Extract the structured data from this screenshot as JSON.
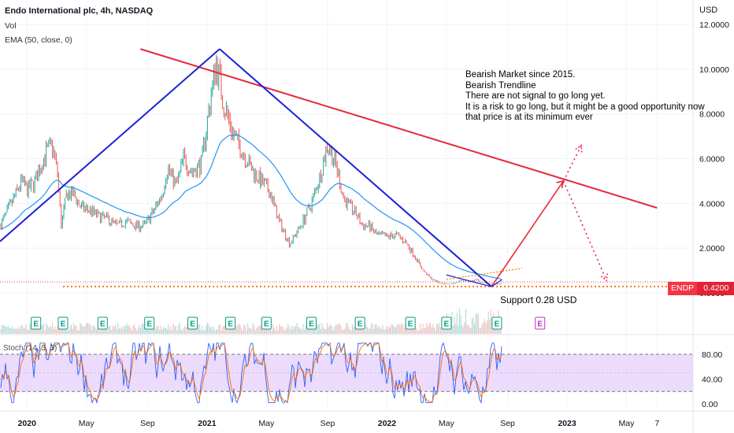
{
  "header": {
    "title": "Endo International plc, 4h, NASDAQ",
    "vol_label": "Vol",
    "ema_label": "EMA (50, close, 0)"
  },
  "notes": [
    "Bearish Market since 2015.",
    "Bearish Trendline",
    "There are not signal to go long yet.",
    "It is a risk to go long, but it might be a good opportunity now",
    "that price is at its minimum ever"
  ],
  "support_text": "Support 0.28 USD",
  "price_axis": {
    "unit": "USD",
    "ticks": [
      {
        "label": "12.0000",
        "value": 12
      },
      {
        "label": "10.0000",
        "value": 10
      },
      {
        "label": "8.0000",
        "value": 8
      },
      {
        "label": "6.0000",
        "value": 6
      },
      {
        "label": "4.0000",
        "value": 4
      },
      {
        "label": "2.0000",
        "value": 2
      },
      {
        "label": "0.0000",
        "value": 0
      }
    ]
  },
  "last_price": {
    "symbol": "ENDP",
    "value": "0.4200",
    "price": 0.42
  },
  "stoch": {
    "label": "Stoch (14, 3, 3)",
    "ticks": [
      {
        "label": "80.00",
        "value": 80
      },
      {
        "label": "40.00",
        "value": 40
      },
      {
        "label": "0.00",
        "value": 0
      }
    ],
    "upper_band": 80,
    "lower_band": 20
  },
  "time_axis": [
    {
      "label": "2020",
      "t": 2020.0,
      "bold": true
    },
    {
      "label": "May",
      "t": 2020.33,
      "bold": false
    },
    {
      "label": "Sep",
      "t": 2020.67,
      "bold": false
    },
    {
      "label": "2021",
      "t": 2021.0,
      "bold": true
    },
    {
      "label": "May",
      "t": 2021.33,
      "bold": false
    },
    {
      "label": "Sep",
      "t": 2021.67,
      "bold": false
    },
    {
      "label": "2022",
      "t": 2022.0,
      "bold": true
    },
    {
      "label": "May",
      "t": 2022.33,
      "bold": false
    },
    {
      "label": "Sep",
      "t": 2022.67,
      "bold": false
    },
    {
      "label": "2023",
      "t": 2023.0,
      "bold": true
    },
    {
      "label": "May",
      "t": 2023.33,
      "bold": false
    },
    {
      "label": "7",
      "t": 2023.5,
      "bold": false
    }
  ],
  "earnings_marker": "E",
  "earnings_t": [
    2020.05,
    2020.2,
    2020.42,
    2020.68,
    2020.92,
    2021.13,
    2021.33,
    2021.58,
    2021.85,
    2022.13,
    2022.33,
    2022.61,
    2022.85
  ],
  "colors": {
    "price_up": "#26a69a",
    "price_down": "#ef5350",
    "ema": "#2196f3",
    "trend_red": "#e52b3b",
    "trend_blue": "#1a22d6",
    "support": "#f57c00",
    "stoch_k": "#2962ff",
    "stoch_d": "#ff6d00",
    "stoch_band": "#e6cffc"
  },
  "chart_data": {
    "type": "line",
    "title": "Endo International plc, 4h, NASDAQ",
    "xlabel": "",
    "ylabel": "USD",
    "xlim": [
      2019.85,
      2023.7
    ],
    "ylim": [
      -0.2,
      12.3
    ],
    "grid": true,
    "legend_position": "top-left",
    "series": [
      {
        "name": "ENDP",
        "x": [
          2019.85,
          2019.92,
          2019.97,
          2020.0,
          2020.04,
          2020.1,
          2020.14,
          2020.17,
          2020.19,
          2020.22,
          2020.26,
          2020.3,
          2020.35,
          2020.4,
          2020.45,
          2020.5,
          2020.55,
          2020.6,
          2020.65,
          2020.7,
          2020.75,
          2020.78,
          2020.83,
          2020.87,
          2020.92,
          2020.97,
          2021.0,
          2021.02,
          2021.05,
          2021.07,
          2021.09,
          2021.11,
          2021.15,
          2021.2,
          2021.25,
          2021.3,
          2021.35,
          2021.4,
          2021.46,
          2021.52,
          2021.58,
          2021.63,
          2021.67,
          2021.72,
          2021.76,
          2021.8,
          2021.84,
          2021.86,
          2021.9,
          2021.94,
          2022.0,
          2022.05,
          2022.1,
          2022.15,
          2022.2,
          2022.25,
          2022.3,
          2022.35,
          2022.38,
          2022.42,
          2022.46,
          2022.5,
          2022.53,
          2022.56,
          2022.6,
          2022.63
        ],
        "values": [
          3.0,
          4.1,
          5.0,
          4.6,
          4.9,
          6.2,
          6.6,
          5.3,
          3.0,
          4.4,
          4.4,
          3.8,
          3.7,
          3.4,
          3.3,
          3.0,
          3.2,
          3.0,
          3.0,
          3.6,
          4.4,
          5.6,
          4.8,
          6.0,
          5.4,
          5.8,
          7.6,
          8.7,
          10.3,
          9.6,
          8.5,
          8.0,
          7.0,
          6.3,
          5.5,
          5.0,
          4.5,
          3.2,
          2.2,
          3.0,
          4.0,
          5.3,
          6.7,
          5.6,
          4.2,
          3.8,
          3.4,
          3.0,
          3.0,
          2.6,
          2.5,
          2.6,
          2.3,
          1.7,
          1.0,
          0.6,
          0.42,
          0.4,
          0.45,
          0.55,
          0.5,
          0.6,
          0.45,
          0.4,
          0.38,
          0.42
        ]
      }
    ],
    "annotations": [
      {
        "type": "trendline",
        "color": "red",
        "from": [
          2020.63,
          10.9
        ],
        "to": [
          2023.5,
          3.8
        ]
      },
      {
        "type": "trendline",
        "color": "blue",
        "from": [
          2019.85,
          2.3
        ],
        "to": [
          2021.07,
          10.9
        ]
      },
      {
        "type": "trendline",
        "color": "blue",
        "from": [
          2021.07,
          10.9
        ],
        "to": [
          2022.58,
          0.28
        ]
      },
      {
        "type": "horizontal",
        "label": "Support 0.28 USD",
        "value": 0.28
      },
      {
        "type": "arrow",
        "from": [
          2022.58,
          0.28
        ],
        "to": [
          2022.98,
          5.0
        ]
      },
      {
        "type": "projection",
        "from": [
          2022.98,
          5.0
        ],
        "to": [
          2023.08,
          6.6
        ]
      },
      {
        "type": "projection",
        "from": [
          2022.98,
          5.0
        ],
        "to": [
          2023.22,
          0.55
        ]
      }
    ]
  }
}
